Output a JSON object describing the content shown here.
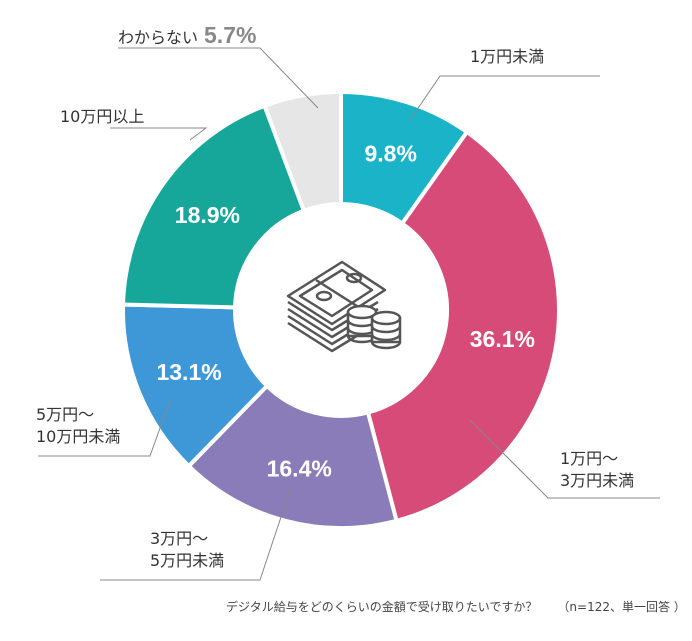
{
  "chart_data": {
    "type": "pie",
    "donut": true,
    "title": "デジタル給与をどのくらいの金額で受け取りたいですか？",
    "note": "（n=122、単一回答 ）",
    "categories": [
      "1万円未満",
      "1万円〜3万円未満",
      "3万円〜5万円未満",
      "5万円〜10万円未満",
      "10万円以上",
      "わからない"
    ],
    "label_lines": [
      [
        "1万円未満"
      ],
      [
        "1万円〜",
        "3万円未満"
      ],
      [
        "3万円〜",
        "5万円未満"
      ],
      [
        "5万円〜",
        "10万円未満"
      ],
      [
        "10万円以上"
      ],
      [
        "わからない"
      ]
    ],
    "values": [
      9.8,
      36.1,
      16.4,
      13.1,
      18.9,
      5.7
    ],
    "value_labels": [
      "9.8%",
      "36.1%",
      "16.4%",
      "13.1%",
      "18.9%",
      "5.7%"
    ],
    "colors": [
      "#1bb3c8",
      "#d64b77",
      "#8a7cb9",
      "#3e98d7",
      "#17a79a",
      "#e6e6e6"
    ],
    "center_icon": "money-stack-coins-icon"
  }
}
